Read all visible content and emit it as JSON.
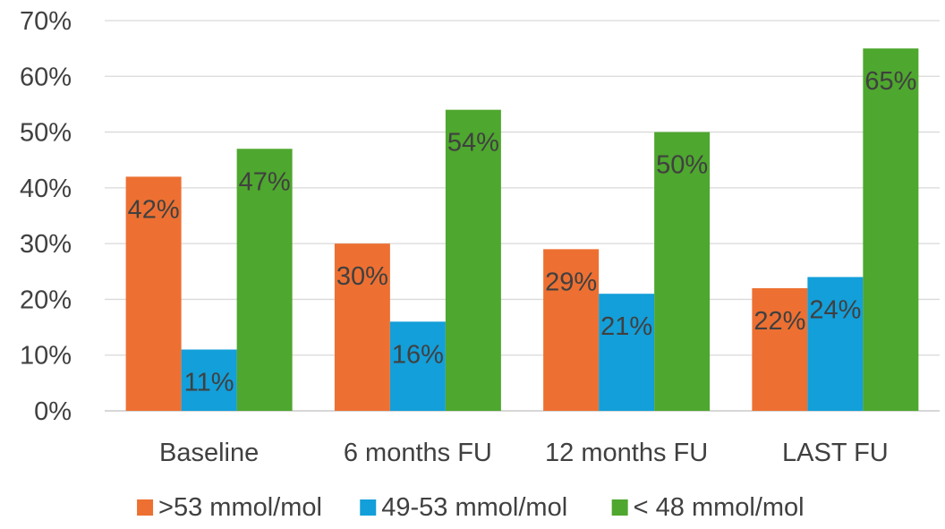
{
  "chart_data": {
    "type": "bar",
    "categories": [
      "Baseline",
      "6 months FU",
      "12 months FU",
      "LAST FU"
    ],
    "series": [
      {
        "name": ">53 mmol/mol",
        "color": "#ED7032",
        "values": [
          42,
          30,
          29,
          22
        ],
        "labels": [
          "42%",
          "30%",
          "29%",
          "22%"
        ]
      },
      {
        "name": "49-53 mmol/mol",
        "color": "#139FD9",
        "values": [
          11,
          16,
          21,
          24
        ],
        "labels": [
          "11%",
          "16%",
          "21%",
          "24%"
        ]
      },
      {
        "name": "< 48 mmol/mol",
        "color": "#4EA72E",
        "values": [
          47,
          54,
          50,
          65
        ],
        "labels": [
          "47%",
          "54%",
          "50%",
          "65%"
        ]
      }
    ],
    "yticks": [
      "0%",
      "10%",
      "20%",
      "30%",
      "40%",
      "50%",
      "60%",
      "70%"
    ],
    "ylim": [
      0,
      70
    ],
    "grid": true,
    "legend": "bottom"
  }
}
